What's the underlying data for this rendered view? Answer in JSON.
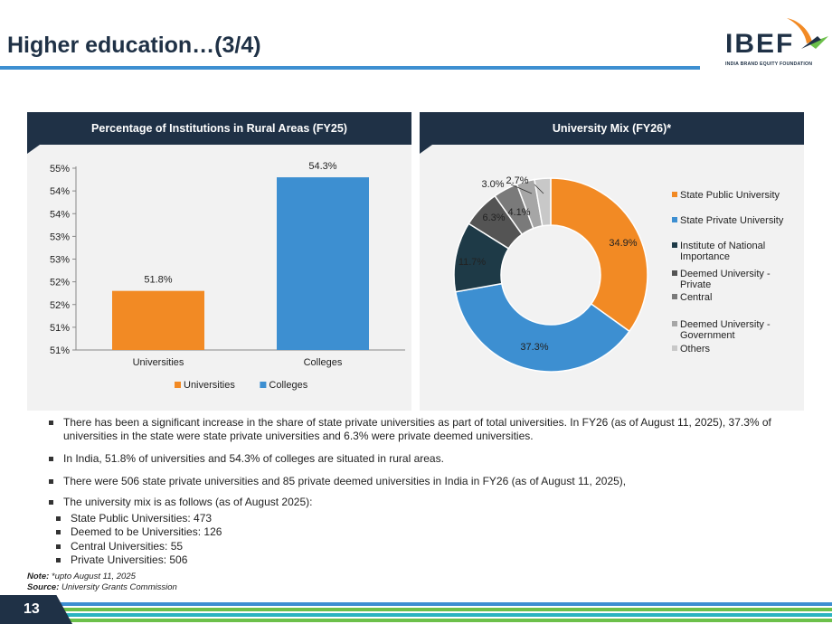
{
  "slide": {
    "title": "Higher education…(3/4)",
    "page_number": "13"
  },
  "logo": {
    "name": "IBEF",
    "tagline": "INDIA BRAND EQUITY FOUNDATION"
  },
  "chart_data": [
    {
      "type": "bar",
      "title": "Percentage of Institutions in Rural Areas (FY25)",
      "categories": [
        "Universities",
        "Colleges"
      ],
      "values": [
        51.8,
        54.3
      ],
      "data_labels": [
        "51.8%",
        "54.3%"
      ],
      "colors": [
        "#f28a24",
        "#3d8fd1"
      ],
      "y_ticks": [
        "51%",
        "51%",
        "52%",
        "52%",
        "53%",
        "53%",
        "54%",
        "54%",
        "55%"
      ],
      "ylim": [
        50.5,
        54.5
      ],
      "legend": [
        "Universities",
        "Colleges"
      ],
      "legend_position": "bottom",
      "grid": false
    },
    {
      "type": "pie",
      "title": "University Mix (FY26)*",
      "labels": [
        "State Public University",
        "State Private University",
        "Institute of National Importance",
        "Deemed University - Private",
        "Central",
        "Deemed University - Government",
        "Others"
      ],
      "values": [
        34.9,
        37.3,
        11.7,
        6.3,
        4.1,
        3.0,
        2.7
      ],
      "data_labels": [
        "34.9%",
        "37.3%",
        "11.7%",
        "6.3%",
        "4.1%",
        "3.0%",
        "2.7%"
      ],
      "colors": [
        "#f28a24",
        "#3d8fd1",
        "#1e3a47",
        "#545454",
        "#7a7a7a",
        "#a6a6a6",
        "#c8c8c8"
      ],
      "donut": true,
      "legend_position": "right"
    }
  ],
  "bullets": [
    "There has been a significant increase in the share of state private universities as part of total universities. In FY26 (as of August 11, 2025), 37.3% of universities in the state were state private universities and 6.3% were private deemed universities.",
    "In India, 51.8% of universities and 54.3% of colleges are situated in rural areas.",
    "There were 506 state private universities and 85 private deemed universities in India in FY26 (as of August 11, 2025),",
    "The university mix is as follows (as of August 2025):"
  ],
  "sub_bullets": [
    "State Public Universities: 473",
    "Deemed to be Universities: 126",
    "Central Universities: 55",
    "Private Universities: 506"
  ],
  "note": {
    "note_label": "Note:",
    "note_text": "*upto August 11, 2025",
    "source_label": "Source:",
    "source_text": "University Grants Commission"
  },
  "footer_colors": [
    "#3d8fd1",
    "#6cc04a",
    "#2bb3c0",
    "#6cc04a"
  ]
}
